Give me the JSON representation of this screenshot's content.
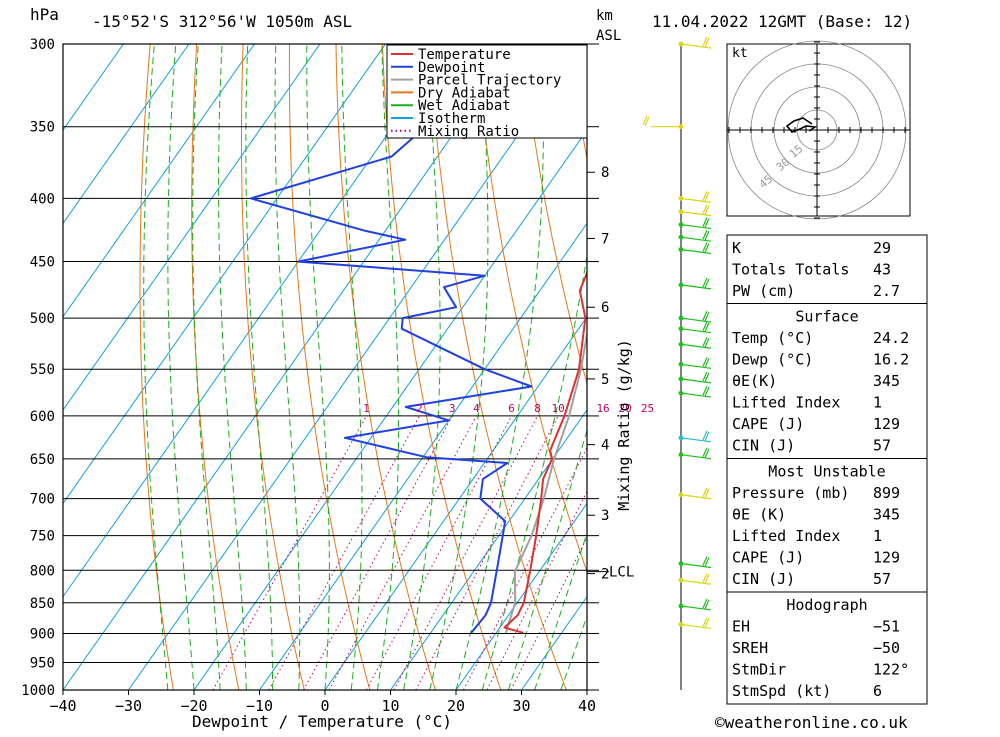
{
  "header": {
    "pressure_unit": "hPa",
    "location": "-15°52'S  312°56'W  1050m  ASL",
    "km_unit": "km",
    "asl_unit": "ASL",
    "datetime": "11.04.2022  12GMT  (Base: 12)"
  },
  "colors": {
    "temperature": "#e03030",
    "dewpoint": "#2040e0",
    "parcel": "#a0a0a0",
    "dry_adiabat": "#e87818",
    "wet_adiabat": "#18b018",
    "isotherm": "#10a0e0",
    "mixing_ratio": "#c0006a",
    "wind_green": "#18c018",
    "wind_yellow": "#d8d810",
    "wind_cyan": "#20c0c0"
  },
  "chart_data": {
    "type": "line",
    "title": "-15°52'S  312°56'W  1050m  ASL",
    "xlabel": "Dewpoint / Temperature (°C)",
    "ylabel": "hPa",
    "right_axis_label": "Mixing Ratio (g/kg)",
    "skew_deg_per_log": 57.5,
    "xlim": [
      -40,
      40
    ],
    "ylim": [
      1000,
      300
    ],
    "x_ticks": [
      -40,
      -30,
      -20,
      -10,
      0,
      10,
      20,
      30,
      40
    ],
    "x_tick_labels": [
      "−40",
      "−30",
      "−20",
      "−10",
      "0",
      "10",
      "20",
      "30",
      "40"
    ],
    "pressure_levels": [
      300,
      350,
      400,
      450,
      500,
      550,
      600,
      650,
      700,
      750,
      800,
      850,
      900,
      950,
      1000
    ],
    "pressure_labels": [
      "300",
      "350",
      "400",
      "450",
      "500",
      "550",
      "600",
      "650",
      "700",
      "750",
      "800",
      "850",
      "900",
      "950",
      "1000"
    ],
    "km_ticks": [
      {
        "label": "8",
        "p": 381
      },
      {
        "label": "7",
        "p": 431
      },
      {
        "label": "6",
        "p": 490
      },
      {
        "label": "5",
        "p": 560
      },
      {
        "label": "4",
        "p": 633
      },
      {
        "label": "3",
        "p": 722
      },
      {
        "label": "2",
        "p": 805
      }
    ],
    "lcl": {
      "label": "LCL",
      "p": 802
    },
    "mixing_ratio_labels": [
      "1",
      "2",
      "3",
      "4",
      "6",
      "8",
      "10",
      "16",
      "20",
      "25"
    ],
    "mixing_ratio_values": [
      1,
      2,
      3,
      4,
      6,
      8,
      10,
      16,
      20,
      25
    ],
    "legend": [
      "Temperature",
      "Dewpoint",
      "Parcel Trajectory",
      "Dry Adiabat",
      "Wet Adiabat",
      "Isotherm",
      "Mixing Ratio"
    ],
    "series": [
      {
        "name": "Temperature",
        "points": [
          [
            899,
            24.2
          ],
          [
            890,
            20.7
          ],
          [
            870,
            21.4
          ],
          [
            850,
            21.0
          ],
          [
            800,
            18.5
          ],
          [
            750,
            15.7
          ],
          [
            700,
            12.5
          ],
          [
            675,
            10.7
          ],
          [
            650,
            9.9
          ],
          [
            640,
            8.7
          ],
          [
            600,
            7.2
          ],
          [
            550,
            4.4
          ],
          [
            500,
            -0.1
          ],
          [
            475,
            -3.9
          ],
          [
            450,
            -5.2
          ],
          [
            425,
            -7.8
          ],
          [
            400,
            -12.3
          ],
          [
            380,
            -15.3
          ],
          [
            360,
            -18.5
          ],
          [
            330,
            -23
          ],
          [
            320,
            -25.5
          ],
          [
            310,
            -27
          ]
        ]
      },
      {
        "name": "Dewpoint",
        "points": [
          [
            899,
            16.2
          ],
          [
            870,
            16.5
          ],
          [
            850,
            16.0
          ],
          [
            800,
            13.4
          ],
          [
            750,
            10.6
          ],
          [
            730,
            9.4
          ],
          [
            700,
            3.2
          ],
          [
            675,
            1.5
          ],
          [
            655,
            3.5
          ],
          [
            648,
            -9.5
          ],
          [
            625,
            -24
          ],
          [
            605,
            -10
          ],
          [
            590,
            -18
          ],
          [
            568,
            -1
          ],
          [
            550,
            -10
          ],
          [
            510,
            -27
          ],
          [
            500,
            -28
          ],
          [
            490,
            -21
          ],
          [
            472,
            -25
          ],
          [
            462,
            -20
          ],
          [
            450,
            -50
          ],
          [
            432,
            -36
          ],
          [
            425,
            -43
          ],
          [
            400,
            -64
          ],
          [
            370,
            -47
          ],
          [
            350,
            -45
          ],
          [
            330,
            -45
          ],
          [
            300,
            -48
          ]
        ]
      },
      {
        "name": "Parcel Trajectory",
        "points": [
          [
            899,
            21.5
          ],
          [
            850,
            19.7
          ],
          [
            802,
            16.3
          ],
          [
            750,
            15.0
          ],
          [
            700,
            12.9
          ],
          [
            650,
            10.2
          ],
          [
            600,
            7.9
          ],
          [
            550,
            4.7
          ],
          [
            500,
            0.6
          ],
          [
            450,
            -4.3
          ],
          [
            400,
            -10.4
          ],
          [
            370,
            -14.8
          ],
          [
            300,
            -26.5
          ]
        ]
      }
    ]
  },
  "wind_profile": {
    "barbs": [
      {
        "p": 300,
        "color": "yellow"
      },
      {
        "p": 350,
        "color": "yellow"
      },
      {
        "p": 400,
        "color": "yellow"
      },
      {
        "p": 410,
        "color": "yellow"
      },
      {
        "p": 420,
        "color": "green"
      },
      {
        "p": 430,
        "color": "green"
      },
      {
        "p": 440,
        "color": "green"
      },
      {
        "p": 470,
        "color": "green"
      },
      {
        "p": 500,
        "color": "green"
      },
      {
        "p": 510,
        "color": "green"
      },
      {
        "p": 525,
        "color": "green"
      },
      {
        "p": 545,
        "color": "green"
      },
      {
        "p": 560,
        "color": "green"
      },
      {
        "p": 575,
        "color": "green"
      },
      {
        "p": 625,
        "color": "cyan"
      },
      {
        "p": 645,
        "color": "green"
      },
      {
        "p": 695,
        "color": "yellow"
      },
      {
        "p": 790,
        "color": "green"
      },
      {
        "p": 815,
        "color": "yellow"
      },
      {
        "p": 855,
        "color": "green"
      },
      {
        "p": 885,
        "color": "yellow"
      }
    ]
  },
  "hodograph": {
    "unit": "kt",
    "ring_labels": [
      "15",
      "30",
      "45"
    ]
  },
  "indices": {
    "general": [
      {
        "label": "K",
        "value": "29"
      },
      {
        "label": "Totals Totals",
        "value": "43"
      },
      {
        "label": "PW (cm)",
        "value": "2.7"
      }
    ],
    "surface_title": "Surface",
    "surface": [
      {
        "label": "Temp (°C)",
        "value": "24.2"
      },
      {
        "label": "Dewp (°C)",
        "value": "16.2"
      },
      {
        "label": "θE(K)",
        "value": "345"
      },
      {
        "label": "Lifted Index",
        "value": "1"
      },
      {
        "label": "CAPE (J)",
        "value": "129"
      },
      {
        "label": "CIN (J)",
        "value": "57"
      }
    ],
    "most_unstable_title": "Most Unstable",
    "most_unstable": [
      {
        "label": "Pressure (mb)",
        "value": "899"
      },
      {
        "label": "θE (K)",
        "value": "345"
      },
      {
        "label": "Lifted Index",
        "value": "1"
      },
      {
        "label": "CAPE (J)",
        "value": "129"
      },
      {
        "label": "CIN (J)",
        "value": "57"
      }
    ],
    "hodograph_title": "Hodograph",
    "hodograph": [
      {
        "label": "EH",
        "value": "−51"
      },
      {
        "label": "SREH",
        "value": "−50"
      },
      {
        "label": "StmDir",
        "value": "122°"
      },
      {
        "label": "StmSpd (kt)",
        "value": "6"
      }
    ]
  },
  "footer": {
    "copyright": "©weatheronline.co.uk"
  }
}
